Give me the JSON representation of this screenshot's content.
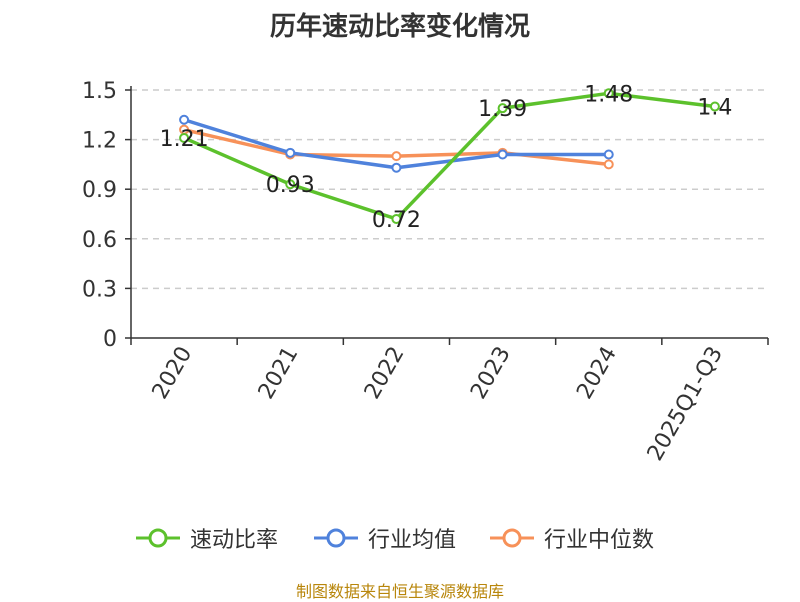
{
  "title": "历年速动比率变化情况",
  "source": "制图数据来自恒生聚源数据库",
  "chart_data": {
    "type": "line",
    "title": "历年速动比率变化情况",
    "xlabel": "",
    "ylabel": "",
    "categories": [
      "2020",
      "2021",
      "2022",
      "2023",
      "2024",
      "2025Q1-Q3"
    ],
    "ylim": [
      0,
      1.5
    ],
    "yticks": [
      "0",
      "0.3",
      "0.6",
      "0.9",
      "1.2",
      "1.5"
    ],
    "grid": true,
    "legend_position": "bottom",
    "series": [
      {
        "name": "速动比率",
        "color": "#5cc12c",
        "values": [
          1.21,
          0.93,
          0.72,
          1.39,
          1.48,
          1.4
        ],
        "labels": [
          "1.21",
          "0.93",
          "0.72",
          "1.39",
          "1.48",
          "1.4"
        ]
      },
      {
        "name": "行业均值",
        "color": "#4f82dc",
        "values": [
          1.32,
          1.12,
          1.03,
          1.11,
          1.11,
          null
        ]
      },
      {
        "name": "行业中位数",
        "color": "#f79159",
        "values": [
          1.26,
          1.11,
          1.1,
          1.12,
          1.05,
          null
        ]
      }
    ]
  }
}
